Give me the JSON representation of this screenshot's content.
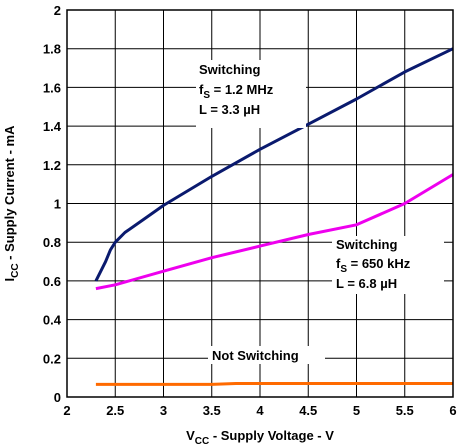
{
  "chart_data": {
    "type": "line",
    "xlabel": {
      "main": "V",
      "sub": "CC",
      "rest": " - Supply Voltage - V"
    },
    "ylabel": {
      "main": "I",
      "sub": "CC",
      "rest": " - Supply Current - mA"
    },
    "xlim": [
      2,
      6
    ],
    "ylim": [
      0,
      2
    ],
    "x_ticks": [
      2,
      2.5,
      3,
      3.5,
      4,
      4.5,
      5,
      5.5,
      6
    ],
    "x_tick_labels": [
      "2",
      "2.5",
      "3",
      "3.5",
      "4",
      "4.5",
      "5",
      "5.5",
      "6"
    ],
    "y_ticks": [
      0,
      0.2,
      0.4,
      0.6,
      0.8,
      1,
      1.2,
      1.4,
      1.6,
      1.8,
      2
    ],
    "y_tick_labels": [
      "0",
      "0.2",
      "0.4",
      "0.6",
      "0.8",
      "1",
      "1.2",
      "1.4",
      "1.6",
      "1.8",
      "2"
    ],
    "grid": true,
    "series": [
      {
        "color": "#0a1a6e",
        "x": [
          2.3,
          2.4,
          2.45,
          2.5,
          2.6,
          2.8,
          3.0,
          3.5,
          4.0,
          4.5,
          5.0,
          5.5,
          6.0
        ],
        "y": [
          0.6,
          0.7,
          0.76,
          0.8,
          0.85,
          0.92,
          0.99,
          1.14,
          1.28,
          1.41,
          1.54,
          1.68,
          1.8
        ]
      },
      {
        "color": "#ee00ee",
        "x": [
          2.3,
          2.5,
          3.0,
          3.5,
          4.0,
          4.5,
          5.0,
          5.5,
          6.0
        ],
        "y": [
          0.56,
          0.58,
          0.65,
          0.72,
          0.78,
          0.84,
          0.89,
          1.0,
          1.15
        ]
      },
      {
        "color": "#ff6a00",
        "x": [
          2.3,
          3.0,
          3.5,
          3.75,
          4.0,
          4.5,
          5.0,
          5.5,
          6.0
        ],
        "y": [
          0.065,
          0.065,
          0.065,
          0.07,
          0.07,
          0.07,
          0.07,
          0.07,
          0.07
        ]
      }
    ],
    "annotations": [
      {
        "lines": [
          "Switching",
          "f_S = 1.2 MHz",
          "L = 3.3 µH"
        ]
      },
      {
        "lines": [
          "Switching",
          "f_S = 650 kHz",
          "L = 6.8 µH"
        ]
      },
      {
        "lines": [
          "Not Switching"
        ]
      }
    ]
  }
}
